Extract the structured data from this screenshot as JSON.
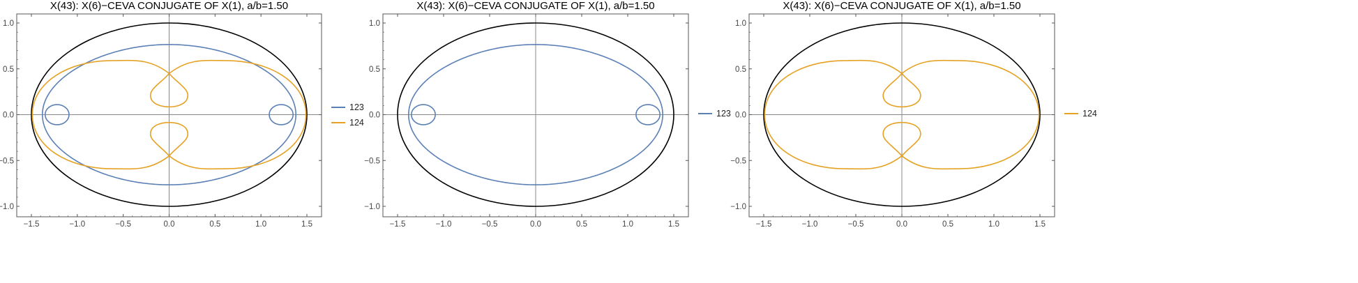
{
  "colors": {
    "s123": "#5b80b5",
    "s124": "#e5a225",
    "curve": "#000000",
    "axes": "#888888",
    "frame": "#555555"
  },
  "chart_data": [
    {
      "type": "line",
      "title": "X(43): X(6)−CEVA CONJUGATE OF X(1), a/b=1.50",
      "xlim": [
        -1.5,
        1.5
      ],
      "ylim": [
        -1.0,
        1.0
      ],
      "xticks": [
        "−1.5",
        "−1.0",
        "−0.5",
        "0.0",
        "0.5",
        "1.0",
        "1.5"
      ],
      "yticks": [
        "1.0",
        "0.5",
        "0.0",
        "−0.5",
        "−1.0"
      ],
      "grid": false,
      "legend_position": "right",
      "series": [
        {
          "name": "123",
          "color": "#5b80b5",
          "curve": "locus-123"
        },
        {
          "name": "124",
          "color": "#e5a225",
          "curve": "locus-124"
        }
      ]
    },
    {
      "type": "line",
      "title": "X(43): X(6)−CEVA CONJUGATE OF X(1), a/b=1.50",
      "xlim": [
        -1.5,
        1.5
      ],
      "ylim": [
        -1.0,
        1.0
      ],
      "xticks": [
        "−1.5",
        "−1.0",
        "−0.5",
        "0.0",
        "0.5",
        "1.0",
        "1.5"
      ],
      "yticks": [
        "1.0",
        "0.5",
        "0.0",
        "−0.5",
        "−1.0"
      ],
      "grid": false,
      "legend_position": "right",
      "series": [
        {
          "name": "123",
          "color": "#5b80b5",
          "curve": "locus-123"
        }
      ]
    },
    {
      "type": "line",
      "title": "X(43): X(6)−CEVA CONJUGATE OF X(1), a/b=1.50",
      "xlim": [
        -1.5,
        1.5
      ],
      "ylim": [
        -1.0,
        1.0
      ],
      "xticks": [
        "−1.5",
        "−1.0",
        "−0.5",
        "0.0",
        "0.5",
        "1.0",
        "1.5"
      ],
      "yticks": [
        "1.0",
        "0.5",
        "0.0",
        "−0.5",
        "−1.0"
      ],
      "grid": false,
      "legend_position": "right",
      "series": [
        {
          "name": "124",
          "color": "#e5a225",
          "curve": "locus-124"
        }
      ]
    }
  ]
}
